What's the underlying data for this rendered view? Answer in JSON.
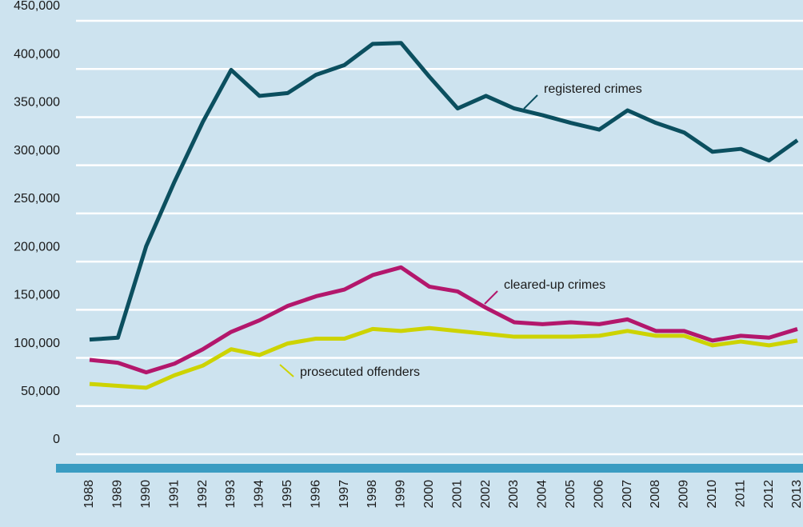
{
  "chart_data": {
    "type": "line",
    "categories": [
      "1988",
      "1989",
      "1990",
      "1991",
      "1992",
      "1993",
      "1994",
      "1995",
      "1996",
      "1997",
      "1998",
      "1999",
      "2000",
      "2001",
      "2002",
      "2003",
      "2004",
      "2005",
      "2006",
      "2007",
      "2008",
      "2009",
      "2010",
      "2011",
      "2012",
      "2013"
    ],
    "series": [
      {
        "name": "registered crimes",
        "color": "#0b4f5f",
        "values": [
          119000,
          121000,
          216000,
          283000,
          345000,
          399000,
          372000,
          375000,
          394000,
          404000,
          426000,
          427000,
          392000,
          359000,
          372000,
          359000,
          352000,
          344000,
          337000,
          357000,
          344000,
          334000,
          314000,
          317000,
          305000,
          326000
        ]
      },
      {
        "name": "cleared-up crimes",
        "color": "#b3176c",
        "values": [
          98000,
          95000,
          85000,
          94000,
          109000,
          127000,
          139000,
          154000,
          164000,
          171000,
          186000,
          194000,
          174000,
          169000,
          152000,
          137000,
          135000,
          137000,
          135000,
          140000,
          128000,
          128000,
          118000,
          123000,
          121000,
          130000
        ]
      },
      {
        "name": "prosecuted offenders",
        "color": "#cdd300",
        "values": [
          73000,
          71000,
          69000,
          82000,
          92000,
          109000,
          103000,
          115000,
          120000,
          120000,
          130000,
          128000,
          131000,
          128000,
          125000,
          122000,
          122000,
          122000,
          123000,
          128000,
          123000,
          123000,
          113000,
          117000,
          113000,
          118000
        ]
      }
    ],
    "ylim": [
      0,
      450000
    ],
    "yticks": [
      0,
      {
        "value": 50000,
        "label": "50,000"
      },
      {
        "value": 100000,
        "label": "100,000"
      },
      {
        "value": 150000,
        "label": "150,000"
      },
      {
        "value": 200000,
        "label": "200,000"
      },
      {
        "value": 250000,
        "label": "250,000"
      },
      {
        "value": 300000,
        "label": "300,000"
      },
      {
        "value": 350000,
        "label": "350,000"
      },
      {
        "value": 400000,
        "label": "400,000"
      },
      {
        "value": 450000,
        "label": "450,000"
      }
    ],
    "grid": true
  }
}
